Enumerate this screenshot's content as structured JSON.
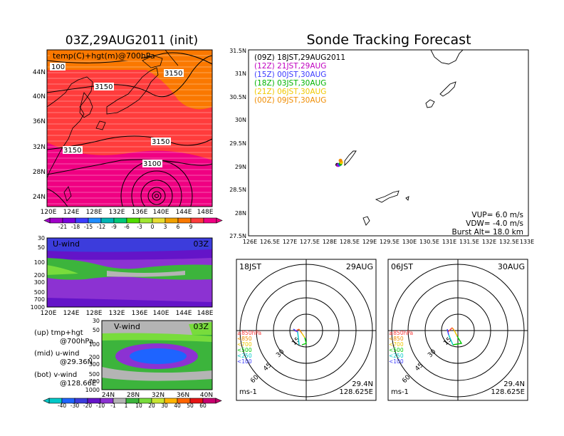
{
  "left_title": "03Z,29AUG2011 (init)",
  "right_title": "Sonde Tracking Forecast",
  "map_panel": {
    "label": "temp(C)+hgt(m)@700hPa",
    "lat_ticks": [
      "44N",
      "40N",
      "36N",
      "32N",
      "28N",
      "24N"
    ],
    "lon_ticks": [
      "120E",
      "124E",
      "128E",
      "132E",
      "136E",
      "140E",
      "144E",
      "148E"
    ],
    "contour_labels": [
      "100",
      "3150",
      "3150",
      "3150",
      "3150",
      "3100"
    ],
    "colorbar_labels": [
      "-21",
      "-18",
      "-15",
      "-12",
      "-9",
      "-6",
      "-3",
      "0",
      "3",
      "6",
      "9"
    ],
    "colorbar_colors": [
      "#a000c8",
      "#7800dc",
      "#3c3cff",
      "#1e8cff",
      "#00b4b4",
      "#00c878",
      "#50dc00",
      "#a0e632",
      "#e6dc32",
      "#f0a000",
      "#fa7800",
      "#ff3c3c",
      "#f00082"
    ]
  },
  "u_panel": {
    "label": "U-wind",
    "time": "03Z",
    "y_ticks": [
      "30",
      "50",
      "100",
      "200",
      "300",
      "500",
      "700",
      "1000"
    ],
    "x_ticks": [
      "120E",
      "124E",
      "128E",
      "132E",
      "136E",
      "140E",
      "144E",
      "148E"
    ]
  },
  "v_panel": {
    "label": "V-wind",
    "time": "03Z",
    "y_ticks": [
      "30",
      "50",
      "100",
      "200",
      "300",
      "500",
      "700",
      "1000"
    ],
    "x_ticks": [
      "24N",
      "28N",
      "32N",
      "36N",
      "40N"
    ]
  },
  "wind_colorbar": {
    "labels": [
      "-40",
      "-30",
      "-20",
      "-10",
      "-1",
      "1",
      "10",
      "20",
      "30",
      "40",
      "50",
      "60"
    ],
    "colors": [
      "#00c8c8",
      "#1e64ff",
      "#3c3cdc",
      "#6414c8",
      "#8c32d2",
      "#b4b4b4",
      "#3cb43c",
      "#78dc3c",
      "#c8e632",
      "#ffb400",
      "#ff6400",
      "#e61414",
      "#c8006e"
    ]
  },
  "notes": {
    "up": "(up) tmp+hgt",
    "up2": "@700hPa",
    "mid": "(mid) u-wind",
    "mid2": "@29.36N",
    "bot": "(bot) v-wind",
    "bot2": "@128.66E"
  },
  "track_legend": [
    {
      "text": "(09Z) 18JST,29AUG2011",
      "color": "#000000"
    },
    {
      "text": "(12Z) 21JST,29AUG",
      "color": "#c000c0"
    },
    {
      "text": "(15Z) 00JST,30AUG",
      "color": "#3c3cff"
    },
    {
      "text": "(18Z) 03JST,30AUG",
      "color": "#00b400"
    },
    {
      "text": "(21Z) 06JST,30AUG",
      "color": "#f0c800"
    },
    {
      "text": "(00Z) 09JST,30AUG",
      "color": "#f08c00"
    }
  ],
  "track_params": {
    "vup": "VUP=  6.0 m/s",
    "vdw": "VDW= -4.0 m/s",
    "burst": "Burst Alt= 18.0 km"
  },
  "chart_data": {
    "type": "scatter",
    "title": "Sonde Tracking Forecast",
    "x_ticks": [
      "126E",
      "126.5E",
      "127E",
      "127.5E",
      "128E",
      "128.5E",
      "129E",
      "129.5E",
      "130E",
      "130.5E",
      "131E",
      "131.5E",
      "132E",
      "132.5E",
      "133E"
    ],
    "y_ticks": [
      "31.5N",
      "31N",
      "30.5N",
      "30N",
      "29.5N",
      "29N",
      "28.5N",
      "28N",
      "27.5N"
    ],
    "xlim": [
      126,
      133
    ],
    "ylim": [
      27.5,
      31.5
    ],
    "launch": {
      "lon": 128.625,
      "lat": 29.4
    },
    "landing_points": [
      {
        "name": "18JST,29AUG2011",
        "lon": 128.22,
        "lat": 29.03,
        "color": "#000000"
      },
      {
        "name": "21JST,29AUG",
        "lon": 128.24,
        "lat": 29.02,
        "color": "#c000c0"
      },
      {
        "name": "00JST,30AUG",
        "lon": 128.27,
        "lat": 29.03,
        "color": "#3c3cff"
      },
      {
        "name": "03JST,30AUG",
        "lon": 128.3,
        "lat": 29.05,
        "color": "#00b400"
      },
      {
        "name": "06JST,30AUG",
        "lon": 128.32,
        "lat": 29.08,
        "color": "#f0c800"
      },
      {
        "name": "09JST,30AUG",
        "lon": 128.3,
        "lat": 29.12,
        "color": "#f08c00"
      }
    ]
  },
  "hodographs": [
    {
      "time": "18JST",
      "date": "29AUG",
      "lat": "29.4N",
      "lon": "128.625E",
      "unit": "ms-1"
    },
    {
      "time": "06JST",
      "date": "30AUG",
      "lat": "29.4N",
      "lon": "128.625E",
      "unit": "ms-1"
    }
  ],
  "hodo_ring_labels": [
    "15",
    "30",
    "45",
    "60"
  ],
  "pressure_legend": [
    {
      "text": "≥850hPa",
      "color": "#ff3c3c"
    },
    {
      "text": "<850",
      "color": "#f08c00"
    },
    {
      "text": "<700",
      "color": "#f0c800"
    },
    {
      "text": "<500",
      "color": "#00c800"
    },
    {
      "text": "<250",
      "color": "#00c8c8"
    },
    {
      "text": "<100",
      "color": "#3c3cff"
    }
  ]
}
